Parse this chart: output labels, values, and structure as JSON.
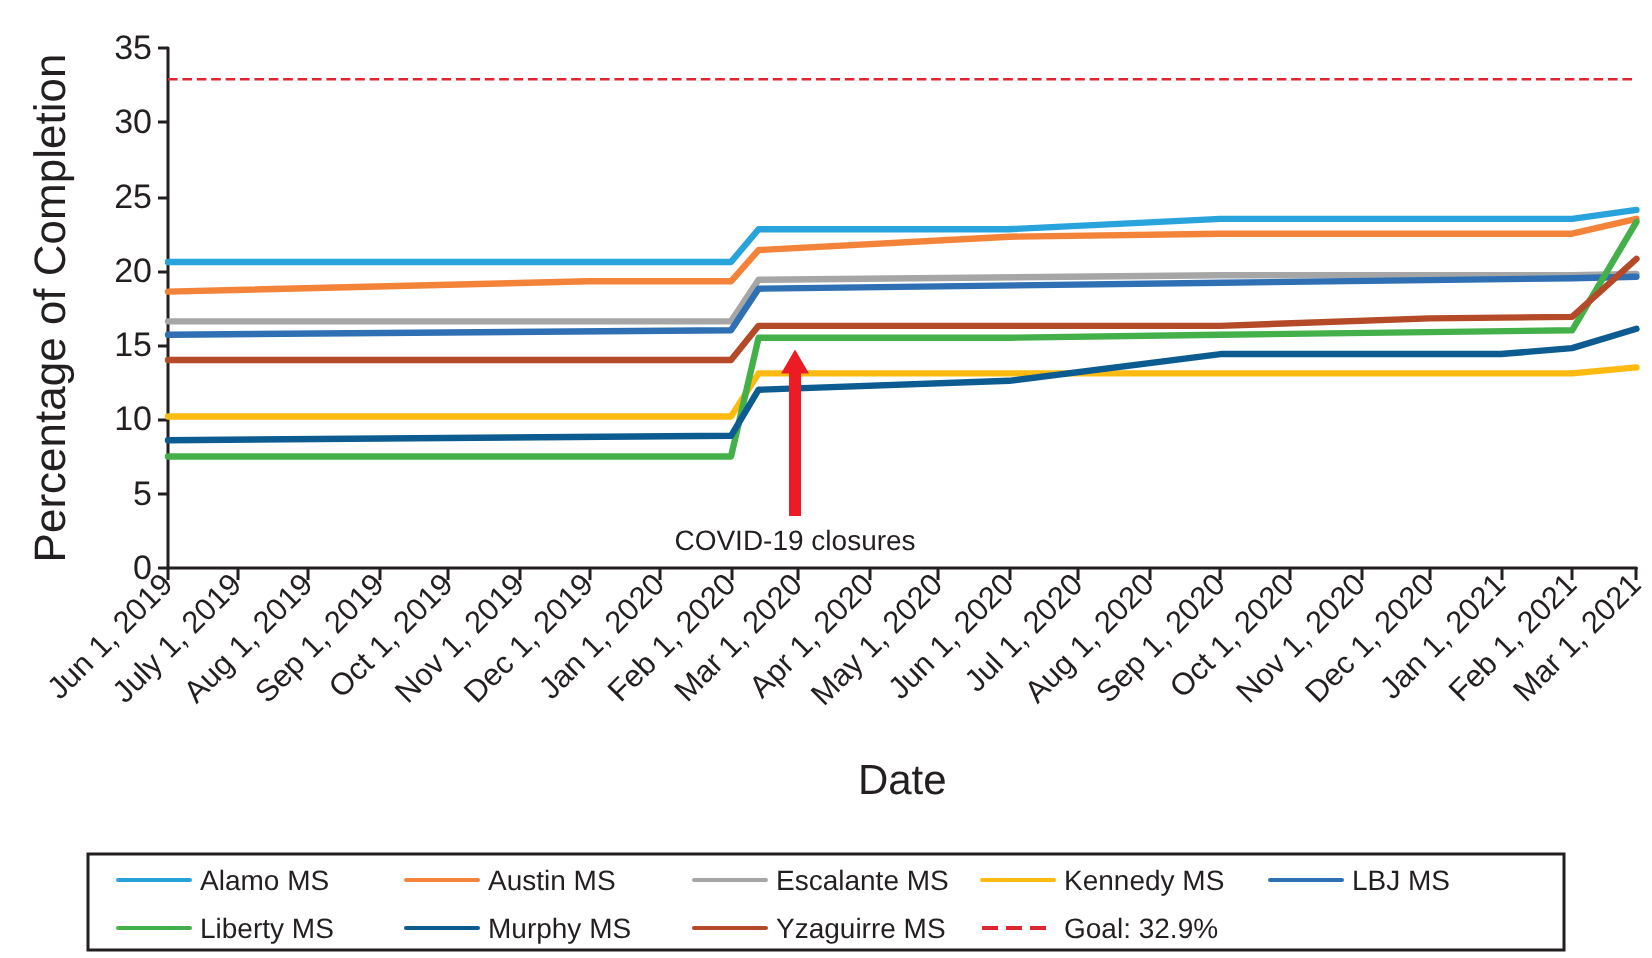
{
  "chart_data": {
    "type": "line",
    "xlabel": "Date",
    "ylabel": "Percentage of Completion",
    "xlim": [
      "2019-06-01",
      "2021-03-01"
    ],
    "xticks": [
      {
        "value": "2019-06-01",
        "label": "Jun 1, 2019"
      },
      {
        "value": "2019-07-01",
        "label": "July 1, 2019"
      },
      {
        "value": "2019-08-01",
        "label": "Aug 1, 2019"
      },
      {
        "value": "2019-09-01",
        "label": "Sep 1, 2019"
      },
      {
        "value": "2019-10-01",
        "label": "Oct 1, 2019"
      },
      {
        "value": "2019-11-01",
        "label": "Nov 1, 2019"
      },
      {
        "value": "2019-12-01",
        "label": "Dec 1, 2019"
      },
      {
        "value": "2020-01-01",
        "label": "Jan 1, 2020"
      },
      {
        "value": "2020-02-01",
        "label": "Feb 1, 2020"
      },
      {
        "value": "2020-03-01",
        "label": "Mar 1, 2020"
      },
      {
        "value": "2020-04-01",
        "label": "Apr 1, 2020"
      },
      {
        "value": "2020-05-01",
        "label": "May 1, 2020"
      },
      {
        "value": "2020-06-01",
        "label": "Jun 1, 2020"
      },
      {
        "value": "2020-07-01",
        "label": "Jul 1, 2020"
      },
      {
        "value": "2020-08-01",
        "label": "Aug 1, 2020"
      },
      {
        "value": "2020-09-01",
        "label": "Sep 1, 2020"
      },
      {
        "value": "2020-10-01",
        "label": "Oct 1, 2020"
      },
      {
        "value": "2020-11-01",
        "label": "Nov 1, 2020"
      },
      {
        "value": "2020-12-01",
        "label": "Dec 1, 2020"
      },
      {
        "value": "2021-01-01",
        "label": "Jan 1, 2021"
      },
      {
        "value": "2021-02-01",
        "label": "Feb 1, 2021"
      },
      {
        "value": "2021-03-01",
        "label": "Mar 1, 2021"
      }
    ],
    "ylim": [
      0,
      35
    ],
    "yticks": [
      0,
      5,
      10,
      15,
      20,
      25,
      30,
      35
    ],
    "grid": false,
    "legend": "bottom",
    "marker": "none",
    "line_style": "solid",
    "series": [
      {
        "name": "Alamo MS",
        "color": "#29a3dc",
        "x": [
          "2019-06-01",
          "2020-02-01",
          "2020-02-13",
          "2020-06-01",
          "2020-09-01",
          "2021-02-01",
          "2021-03-01"
        ],
        "values": [
          20.6,
          20.6,
          22.8,
          22.8,
          23.5,
          23.5,
          24.1
        ]
      },
      {
        "name": "Austin MS",
        "color": "#f4833a",
        "x": [
          "2019-06-01",
          "2019-12-01",
          "2020-02-01",
          "2020-02-13",
          "2020-06-01",
          "2020-09-01",
          "2021-02-01",
          "2021-03-01"
        ],
        "values": [
          18.6,
          19.3,
          19.3,
          21.4,
          22.3,
          22.5,
          22.5,
          23.5
        ]
      },
      {
        "name": "Escalante MS",
        "color": "#a6a6a6",
        "x": [
          "2019-06-01",
          "2020-02-01",
          "2020-02-13",
          "2020-09-01",
          "2021-02-01",
          "2021-03-01"
        ],
        "values": [
          16.6,
          16.6,
          19.4,
          19.7,
          19.7,
          19.8
        ]
      },
      {
        "name": "Kennedy MS",
        "color": "#fdbb12",
        "x": [
          "2019-06-01",
          "2020-02-01",
          "2020-02-13",
          "2021-02-01",
          "2021-03-01"
        ],
        "values": [
          10.2,
          10.2,
          13.1,
          13.1,
          13.5
        ]
      },
      {
        "name": "LBJ MS",
        "color": "#2f70b5",
        "x": [
          "2019-06-01",
          "2020-02-01",
          "2020-02-13",
          "2020-09-01",
          "2021-02-01",
          "2021-03-01"
        ],
        "values": [
          15.7,
          16.0,
          18.8,
          19.2,
          19.5,
          19.6
        ]
      },
      {
        "name": "Liberty MS",
        "color": "#43b04a",
        "x": [
          "2019-06-01",
          "2020-02-01",
          "2020-02-13",
          "2020-06-01",
          "2020-09-01",
          "2021-02-01",
          "2021-03-01"
        ],
        "values": [
          7.5,
          7.5,
          15.5,
          15.5,
          15.7,
          16.0,
          23.3
        ]
      },
      {
        "name": "Murphy MS",
        "color": "#0d5c91",
        "x": [
          "2019-06-01",
          "2020-02-01",
          "2020-02-13",
          "2020-06-01",
          "2020-09-01",
          "2021-01-01",
          "2021-02-01",
          "2021-03-01"
        ],
        "values": [
          8.6,
          8.9,
          12.0,
          12.6,
          14.4,
          14.4,
          14.8,
          16.1
        ]
      },
      {
        "name": "Yzaguirre MS",
        "color": "#b54a28",
        "x": [
          "2019-06-01",
          "2020-02-01",
          "2020-02-13",
          "2020-09-01",
          "2020-12-01",
          "2021-02-01",
          "2021-03-01"
        ],
        "values": [
          14.0,
          14.0,
          16.3,
          16.3,
          16.8,
          16.9,
          20.8
        ]
      }
    ],
    "ref_lines": [
      {
        "axis": "y",
        "value": 32.9,
        "label": "Goal: 32.9%",
        "color": "#e0262f",
        "line_style": "dashed"
      }
    ],
    "annotations": [
      "COVID-19 closures"
    ]
  }
}
